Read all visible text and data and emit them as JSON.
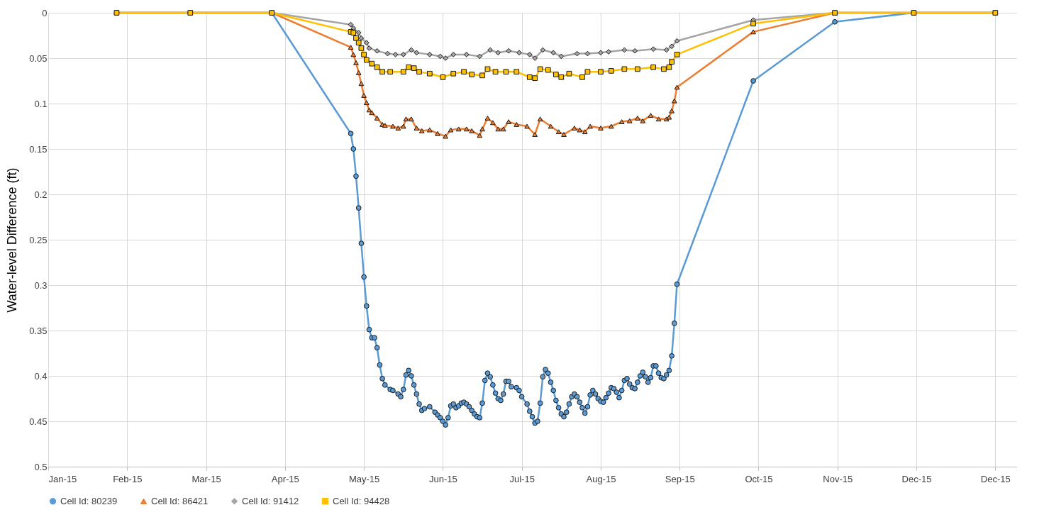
{
  "chart_data": {
    "type": "line",
    "ylabel": "Water-level Difference (ft)",
    "xlim": [
      "2015-01-05",
      "2016-01-08"
    ],
    "ylim": [
      0.5,
      0
    ],
    "xticks": [
      {
        "value": "2015-01-05",
        "label": "Jan-15"
      },
      {
        "value": "2015-02-04",
        "label": "Feb-15"
      },
      {
        "value": "2015-03-06",
        "label": "Mar-15"
      },
      {
        "value": "2015-04-05",
        "label": "Apr-15"
      },
      {
        "value": "2015-05-05",
        "label": "May-15"
      },
      {
        "value": "2015-06-04",
        "label": "Jun-15"
      },
      {
        "value": "2015-07-04",
        "label": "Jul-15"
      },
      {
        "value": "2015-08-03",
        "label": "Aug-15"
      },
      {
        "value": "2015-09-02",
        "label": "Sep-15"
      },
      {
        "value": "2015-10-02",
        "label": "Oct-15"
      },
      {
        "value": "2015-11-01",
        "label": "Nov-15"
      },
      {
        "value": "2015-12-01",
        "label": "Dec-15"
      },
      {
        "value": "2015-12-31",
        "label": "Dec-15"
      }
    ],
    "yticks": [
      0,
      0.05,
      0.1,
      0.15,
      0.2,
      0.25,
      0.3,
      0.35,
      0.4,
      0.45,
      0.5
    ],
    "grid": true,
    "legend": "bottom",
    "series": [
      {
        "name": "Cell Id: 80239",
        "color": "#5b9bd5",
        "marker": "circle",
        "x": [
          "2015-01-31",
          "2015-02-28",
          "2015-03-31",
          "2015-04-30",
          "2015-05-01",
          "2015-05-02",
          "2015-05-03",
          "2015-05-04",
          "2015-05-05",
          "2015-05-06",
          "2015-05-07",
          "2015-05-08",
          "2015-05-09",
          "2015-05-10",
          "2015-05-11",
          "2015-05-12",
          "2015-05-13",
          "2015-05-15",
          "2015-05-16",
          "2015-05-18",
          "2015-05-19",
          "2015-05-20",
          "2015-05-21",
          "2015-05-22",
          "2015-05-23",
          "2015-05-24",
          "2015-05-25",
          "2015-05-26",
          "2015-05-27",
          "2015-05-28",
          "2015-05-30",
          "2015-06-01",
          "2015-06-02",
          "2015-06-03",
          "2015-06-04",
          "2015-06-05",
          "2015-06-06",
          "2015-06-07",
          "2015-06-08",
          "2015-06-09",
          "2015-06-10",
          "2015-06-11",
          "2015-06-12",
          "2015-06-13",
          "2015-06-14",
          "2015-06-15",
          "2015-06-16",
          "2015-06-17",
          "2015-06-18",
          "2015-06-19",
          "2015-06-20",
          "2015-06-21",
          "2015-06-22",
          "2015-06-23",
          "2015-06-24",
          "2015-06-25",
          "2015-06-26",
          "2015-06-27",
          "2015-06-28",
          "2015-06-29",
          "2015-06-30",
          "2015-07-02",
          "2015-07-03",
          "2015-07-04",
          "2015-07-06",
          "2015-07-07",
          "2015-07-08",
          "2015-07-09",
          "2015-07-10",
          "2015-07-11",
          "2015-07-12",
          "2015-07-13",
          "2015-07-14",
          "2015-07-15",
          "2015-07-16",
          "2015-07-17",
          "2015-07-18",
          "2015-07-19",
          "2015-07-20",
          "2015-07-21",
          "2015-07-22",
          "2015-07-23",
          "2015-07-24",
          "2015-07-25",
          "2015-07-26",
          "2015-07-27",
          "2015-07-28",
          "2015-07-29",
          "2015-07-30",
          "2015-07-31",
          "2015-08-01",
          "2015-08-02",
          "2015-08-03",
          "2015-08-04",
          "2015-08-05",
          "2015-08-06",
          "2015-08-07",
          "2015-08-08",
          "2015-08-09",
          "2015-08-10",
          "2015-08-11",
          "2015-08-12",
          "2015-08-13",
          "2015-08-14",
          "2015-08-15",
          "2015-08-16",
          "2015-08-17",
          "2015-08-18",
          "2015-08-19",
          "2015-08-20",
          "2015-08-21",
          "2015-08-22",
          "2015-08-23",
          "2015-08-24",
          "2015-08-25",
          "2015-08-26",
          "2015-08-27",
          "2015-08-28",
          "2015-08-29",
          "2015-08-30",
          "2015-08-31",
          "2015-09-01",
          "2015-09-30",
          "2015-10-31",
          "2015-11-30",
          "2015-12-31"
        ],
        "values": [
          0,
          0,
          0,
          0.133,
          0.15,
          0.18,
          0.215,
          0.254,
          0.291,
          0.323,
          0.349,
          0.358,
          0.358,
          0.369,
          0.388,
          0.403,
          0.41,
          0.415,
          0.416,
          0.42,
          0.423,
          0.415,
          0.399,
          0.394,
          0.4,
          0.41,
          0.42,
          0.431,
          0.438,
          0.436,
          0.434,
          0.44,
          0.443,
          0.446,
          0.45,
          0.454,
          0.446,
          0.433,
          0.431,
          0.435,
          0.433,
          0.43,
          0.429,
          0.431,
          0.434,
          0.438,
          0.442,
          0.445,
          0.446,
          0.43,
          0.405,
          0.397,
          0.401,
          0.41,
          0.419,
          0.425,
          0.427,
          0.42,
          0.406,
          0.406,
          0.412,
          0.413,
          0.416,
          0.423,
          0.431,
          0.439,
          0.445,
          0.452,
          0.45,
          0.43,
          0.401,
          0.393,
          0.397,
          0.407,
          0.416,
          0.427,
          0.435,
          0.442,
          0.445,
          0.44,
          0.431,
          0.423,
          0.42,
          0.423,
          0.429,
          0.435,
          0.441,
          0.434,
          0.421,
          0.416,
          0.42,
          0.425,
          0.428,
          0.429,
          0.424,
          0.419,
          0.413,
          0.414,
          0.418,
          0.424,
          0.416,
          0.405,
          0.403,
          0.409,
          0.413,
          0.414,
          0.407,
          0.4,
          0.396,
          0.401,
          0.407,
          0.402,
          0.389,
          0.389,
          0.397,
          0.402,
          0.403,
          0.399,
          0.394,
          0.378,
          0.342,
          0.299,
          0.075,
          0.01,
          0,
          0
        ]
      },
      {
        "name": "Cell Id: 86421",
        "color": "#ed7d31",
        "marker": "triangle",
        "x": [
          "2015-01-31",
          "2015-02-28",
          "2015-03-31",
          "2015-04-30",
          "2015-05-01",
          "2015-05-02",
          "2015-05-03",
          "2015-05-04",
          "2015-05-05",
          "2015-05-06",
          "2015-05-07",
          "2015-05-08",
          "2015-05-10",
          "2015-05-12",
          "2015-05-13",
          "2015-05-16",
          "2015-05-18",
          "2015-05-20",
          "2015-05-21",
          "2015-05-23",
          "2015-05-25",
          "2015-05-27",
          "2015-05-30",
          "2015-06-02",
          "2015-06-05",
          "2015-06-07",
          "2015-06-10",
          "2015-06-13",
          "2015-06-15",
          "2015-06-18",
          "2015-06-19",
          "2015-06-21",
          "2015-06-23",
          "2015-06-25",
          "2015-06-27",
          "2015-06-29",
          "2015-07-02",
          "2015-07-06",
          "2015-07-09",
          "2015-07-11",
          "2015-07-15",
          "2015-07-18",
          "2015-07-20",
          "2015-07-24",
          "2015-07-26",
          "2015-07-28",
          "2015-07-30",
          "2015-08-03",
          "2015-08-07",
          "2015-08-11",
          "2015-08-14",
          "2015-08-17",
          "2015-08-19",
          "2015-08-22",
          "2015-08-25",
          "2015-08-28",
          "2015-08-29",
          "2015-08-30",
          "2015-08-31",
          "2015-09-01",
          "2015-09-30",
          "2015-10-31",
          "2015-11-30",
          "2015-12-31"
        ],
        "values": [
          0,
          0,
          0,
          0.038,
          0.046,
          0.055,
          0.066,
          0.078,
          0.091,
          0.099,
          0.107,
          0.11,
          0.116,
          0.123,
          0.124,
          0.125,
          0.127,
          0.125,
          0.117,
          0.117,
          0.127,
          0.13,
          0.129,
          0.133,
          0.136,
          0.129,
          0.128,
          0.128,
          0.13,
          0.135,
          0.128,
          0.116,
          0.121,
          0.128,
          0.128,
          0.12,
          0.123,
          0.125,
          0.134,
          0.117,
          0.125,
          0.131,
          0.134,
          0.127,
          0.129,
          0.131,
          0.125,
          0.127,
          0.125,
          0.12,
          0.119,
          0.116,
          0.119,
          0.113,
          0.117,
          0.117,
          0.115,
          0.108,
          0.097,
          0.082,
          0.021,
          0,
          0,
          0
        ]
      },
      {
        "name": "Cell Id: 91412",
        "color": "#a5a5a5",
        "marker": "diamond",
        "x": [
          "2015-01-31",
          "2015-02-28",
          "2015-03-31",
          "2015-04-30",
          "2015-05-01",
          "2015-05-03",
          "2015-05-04",
          "2015-05-06",
          "2015-05-07",
          "2015-05-10",
          "2015-05-14",
          "2015-05-17",
          "2015-05-20",
          "2015-05-23",
          "2015-05-25",
          "2015-05-30",
          "2015-06-03",
          "2015-06-05",
          "2015-06-08",
          "2015-06-13",
          "2015-06-18",
          "2015-06-22",
          "2015-06-25",
          "2015-06-29",
          "2015-07-03",
          "2015-07-07",
          "2015-07-09",
          "2015-07-12",
          "2015-07-16",
          "2015-07-19",
          "2015-07-25",
          "2015-07-29",
          "2015-08-03",
          "2015-08-06",
          "2015-08-12",
          "2015-08-16",
          "2015-08-23",
          "2015-08-28",
          "2015-08-30",
          "2015-09-01",
          "2015-09-30",
          "2015-10-31",
          "2015-11-30",
          "2015-12-31"
        ],
        "values": [
          0,
          0,
          0,
          0.013,
          0.017,
          0.022,
          0.028,
          0.033,
          0.039,
          0.042,
          0.045,
          0.046,
          0.046,
          0.041,
          0.044,
          0.046,
          0.048,
          0.05,
          0.046,
          0.046,
          0.048,
          0.041,
          0.044,
          0.042,
          0.044,
          0.046,
          0.05,
          0.041,
          0.044,
          0.048,
          0.045,
          0.045,
          0.044,
          0.043,
          0.041,
          0.042,
          0.04,
          0.041,
          0.037,
          0.031,
          0.008,
          0,
          0,
          0
        ]
      },
      {
        "name": "Cell Id: 94428",
        "color": "#ffc000",
        "marker": "square",
        "x": [
          "2015-01-31",
          "2015-02-28",
          "2015-03-31",
          "2015-04-30",
          "2015-05-01",
          "2015-05-02",
          "2015-05-03",
          "2015-05-04",
          "2015-05-05",
          "2015-05-06",
          "2015-05-08",
          "2015-05-10",
          "2015-05-12",
          "2015-05-15",
          "2015-05-20",
          "2015-05-22",
          "2015-05-24",
          "2015-05-26",
          "2015-05-30",
          "2015-06-04",
          "2015-06-08",
          "2015-06-12",
          "2015-06-15",
          "2015-06-19",
          "2015-06-21",
          "2015-06-24",
          "2015-06-28",
          "2015-07-02",
          "2015-07-07",
          "2015-07-09",
          "2015-07-11",
          "2015-07-14",
          "2015-07-17",
          "2015-07-19",
          "2015-07-22",
          "2015-07-27",
          "2015-07-29",
          "2015-08-03",
          "2015-08-07",
          "2015-08-12",
          "2015-08-17",
          "2015-08-23",
          "2015-08-27",
          "2015-08-29",
          "2015-08-30",
          "2015-09-01",
          "2015-09-30",
          "2015-10-31",
          "2015-11-30",
          "2015-12-31"
        ],
        "values": [
          0,
          0,
          0,
          0.021,
          0.022,
          0.028,
          0.033,
          0.039,
          0.046,
          0.052,
          0.056,
          0.06,
          0.065,
          0.065,
          0.065,
          0.06,
          0.061,
          0.065,
          0.067,
          0.071,
          0.067,
          0.065,
          0.068,
          0.069,
          0.062,
          0.065,
          0.065,
          0.065,
          0.071,
          0.072,
          0.062,
          0.063,
          0.068,
          0.071,
          0.067,
          0.071,
          0.065,
          0.065,
          0.064,
          0.062,
          0.062,
          0.06,
          0.062,
          0.06,
          0.054,
          0.046,
          0.012,
          0,
          0,
          0
        ]
      }
    ]
  }
}
